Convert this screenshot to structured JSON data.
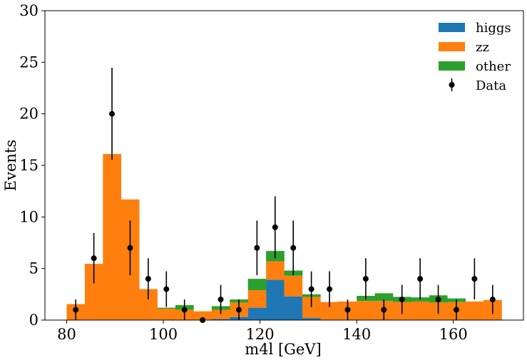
{
  "chart_data": {
    "type": "bar",
    "stacked": true,
    "xlabel": "m4l [GeV]",
    "ylabel": "Events",
    "xlim": [
      75.5,
      174.5
    ],
    "ylim": [
      0,
      30
    ],
    "xticks": [
      80,
      100,
      120,
      140,
      160
    ],
    "yticks": [
      0,
      5,
      10,
      15,
      20,
      25,
      30
    ],
    "grid": false,
    "legend_position": "top-right",
    "bin_edges": [
      80,
      83.75,
      87.5,
      91.25,
      95,
      98.75,
      102.5,
      106.25,
      110,
      113.75,
      117.5,
      121.25,
      125,
      128.75,
      132.5,
      136.25,
      140,
      143.75,
      147.5,
      151.25,
      155,
      158.75,
      162.5,
      166.25,
      170
    ],
    "series": [
      {
        "name": "higgs",
        "color": "#1f77b4",
        "values": [
          0,
          0,
          0,
          0,
          0,
          0,
          0,
          0,
          0.1,
          0.3,
          1.2,
          3.9,
          2.3,
          0.2,
          0,
          0,
          0,
          0,
          0,
          0,
          0,
          0,
          0,
          0
        ]
      },
      {
        "name": "zz",
        "color": "#ff7f0e",
        "values": [
          1.55,
          5.45,
          16.1,
          11.7,
          3.0,
          1.1,
          1.0,
          0.85,
          0.9,
          1.4,
          1.7,
          1.8,
          2.0,
          2.05,
          1.75,
          1.8,
          1.85,
          1.85,
          1.75,
          1.8,
          1.7,
          1.75,
          1.8,
          1.95
        ]
      },
      {
        "name": "other",
        "color": "#2ca02c",
        "values": [
          0,
          0,
          0,
          0,
          0,
          0.1,
          0.45,
          0,
          0.35,
          0.3,
          1.1,
          1.0,
          0.5,
          0.25,
          0,
          0,
          0.5,
          0.75,
          0.5,
          0.4,
          0.7,
          0.35,
          0,
          0
        ]
      }
    ],
    "data_points": {
      "name": "Data",
      "x": [
        81.875,
        85.625,
        89.375,
        93.125,
        96.875,
        100.625,
        104.375,
        108.125,
        111.875,
        115.625,
        119.375,
        123.125,
        126.875,
        130.625,
        134.375,
        138.125,
        141.875,
        145.625,
        149.375,
        153.125,
        156.875,
        160.625,
        164.375,
        168.125
      ],
      "y": [
        1,
        6,
        20,
        7,
        4,
        3,
        1,
        0,
        2,
        1,
        7,
        9,
        7,
        3,
        3,
        1,
        4,
        1,
        2,
        4,
        2,
        1,
        4,
        2
      ],
      "yerr": [
        1,
        2.45,
        4.47,
        2.65,
        2,
        1.73,
        1,
        0,
        1.41,
        1,
        2.65,
        3,
        2.65,
        1.73,
        1.73,
        1,
        2,
        1,
        1.41,
        2,
        1.41,
        1,
        2,
        1.41
      ]
    }
  }
}
